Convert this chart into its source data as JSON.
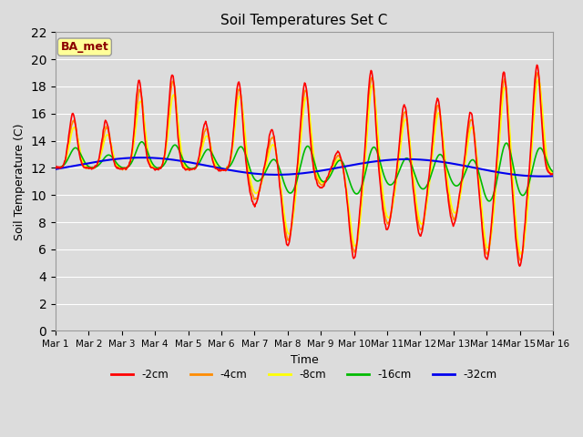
{
  "title": "Soil Temperatures Set C",
  "xlabel": "Time",
  "ylabel": "Soil Temperature (C)",
  "ylim": [
    0,
    22
  ],
  "yticks": [
    0,
    2,
    4,
    6,
    8,
    10,
    12,
    14,
    16,
    18,
    20,
    22
  ],
  "xtick_labels": [
    "Mar 1",
    "Mar 2",
    "Mar 3",
    "Mar 4",
    "Mar 5",
    "Mar 6",
    "Mar 7",
    "Mar 8",
    "Mar 9",
    "Mar 10",
    "Mar 11",
    "Mar 12",
    "Mar 13",
    "Mar 14",
    "Mar 15",
    "Mar 16"
  ],
  "annotation_text": "BA_met",
  "annotation_color": "#8B0000",
  "annotation_bg": "#FFFF99",
  "plot_bg": "#DCDCDC",
  "fig_bg": "#DCDCDC",
  "colors": {
    "-2cm": "#FF0000",
    "-4cm": "#FF8C00",
    "-8cm": "#FFFF00",
    "-16cm": "#00BB00",
    "-32cm": "#0000EE"
  },
  "linewidth": 1.2
}
